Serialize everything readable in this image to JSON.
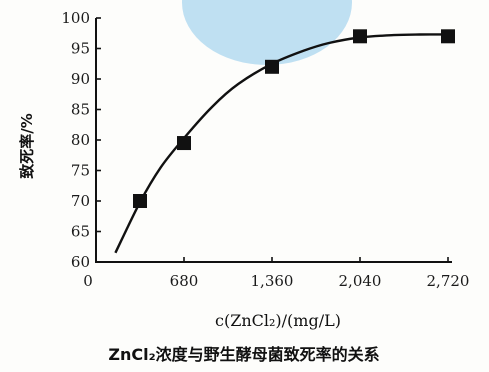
{
  "chart_data": {
    "type": "line",
    "xlabel": "c(ZnCl₂)/(mg/L)",
    "ylabel": "致死率/%",
    "caption": "ZnCl₂浓度与野生酵母菌致死率的关系",
    "x_ticks": [
      "0",
      "680",
      "1,360",
      "2,040",
      "2,720"
    ],
    "y_ticks": [
      "60",
      "65",
      "70",
      "75",
      "80",
      "85",
      "90",
      "95",
      "100"
    ],
    "xlim": [
      0,
      2720
    ],
    "ylim": [
      60,
      100
    ],
    "markers": {
      "x": [
        340,
        680,
        1360,
        2040,
        2720
      ],
      "y": [
        70,
        79.5,
        92,
        97,
        97
      ]
    },
    "curve": {
      "x": [
        150,
        340,
        500,
        680,
        900,
        1100,
        1360,
        1600,
        1800,
        2040,
        2300,
        2500,
        2720
      ],
      "y": [
        61.5,
        69.8,
        75.5,
        80.3,
        85.5,
        89.2,
        92.5,
        94.6,
        95.9,
        96.8,
        97.2,
        97.3,
        97.3
      ]
    },
    "colors": {
      "ink": "#111111",
      "blob": "#bfe0f2"
    }
  }
}
